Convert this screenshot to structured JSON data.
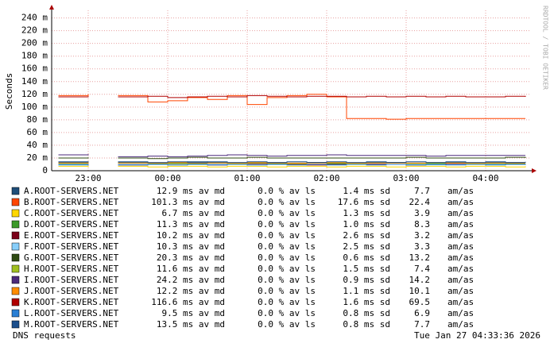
{
  "chart_data": {
    "type": "line",
    "title": "DNS requests",
    "timestamp": "Tue Jan 27 04:33:36 2026",
    "watermark": "RRDTOOL / TOBI OETIKER",
    "y_label": "Seconds",
    "ylim": [
      0,
      0.252
    ],
    "yticks": [
      0,
      {
        "value": 0.02,
        "label": "20 m"
      },
      {
        "value": 0.04,
        "label": "40 m"
      },
      {
        "value": 0.06,
        "label": "60 m"
      },
      {
        "value": 0.08,
        "label": "80 m"
      },
      {
        "value": 0.1,
        "label": "100 m"
      },
      {
        "value": 0.12,
        "label": "120 m"
      },
      {
        "value": 0.14,
        "label": "140 m"
      },
      {
        "value": 0.16,
        "label": "160 m"
      },
      {
        "value": 0.18,
        "label": "180 m"
      },
      {
        "value": 0.2,
        "label": "200 m"
      },
      {
        "value": 0.22,
        "label": "220 m"
      },
      {
        "value": 0.24,
        "label": "240 m"
      }
    ],
    "grid": true,
    "categories": [
      null,
      "23:00",
      null,
      null,
      null,
      "00:00",
      null,
      null,
      null,
      "01:00",
      null,
      null,
      null,
      "02:00",
      null,
      null,
      null,
      "03:00",
      null,
      null,
      null,
      "04:00",
      null,
      null
    ],
    "series": [
      {
        "name": "A.ROOT-SERVERS.NET",
        "color": "#1f4e79",
        "stats": [
          "12.9 ms av md",
          "0.0 % av ls",
          "1.4 ms sd",
          "7.7",
          "am/as"
        ],
        "values": [
          0.013,
          0.012,
          null,
          0.013,
          0.012,
          0.013,
          0.014,
          0.013,
          0.012,
          0.013,
          0.013,
          0.012,
          0.013,
          0.013,
          0.012,
          0.013,
          0.013,
          0.012,
          0.013,
          0.013,
          0.012,
          0.013,
          0.013,
          0.013
        ]
      },
      {
        "name": "B.ROOT-SERVERS.NET",
        "color": "#ff4500",
        "stats": [
          "101.3 ms av md",
          "0.0 % av ls",
          "17.6 ms sd",
          "22.4",
          "am/as"
        ],
        "values": [
          0.118,
          0.12,
          null,
          0.118,
          0.108,
          0.11,
          0.115,
          0.112,
          0.118,
          0.104,
          0.115,
          0.118,
          0.12,
          0.116,
          0.082,
          0.082,
          0.081,
          0.082,
          0.082,
          0.082,
          0.082,
          0.082,
          0.082,
          0.082
        ]
      },
      {
        "name": "C.ROOT-SERVERS.NET",
        "color": "#ffd700",
        "stats": [
          "6.7 ms av md",
          "0.0 % av ls",
          "1.3 ms sd",
          "3.9",
          "am/as"
        ],
        "values": [
          0.007,
          0.006,
          null,
          0.007,
          0.006,
          0.007,
          0.007,
          0.006,
          0.007,
          0.007,
          0.006,
          0.007,
          0.007,
          0.006,
          0.007,
          0.007,
          0.006,
          0.007,
          0.007,
          0.006,
          0.007,
          0.007,
          0.006,
          0.007
        ]
      },
      {
        "name": "D.ROOT-SERVERS.NET",
        "color": "#3c9a2a",
        "stats": [
          "11.3 ms av md",
          "0.0 % av ls",
          "1.0 ms sd",
          "8.3",
          "am/as"
        ],
        "values": [
          0.011,
          0.012,
          null,
          0.011,
          0.011,
          0.012,
          0.011,
          0.011,
          0.012,
          0.011,
          0.011,
          0.011,
          0.012,
          0.011,
          0.011,
          0.011,
          0.012,
          0.011,
          0.011,
          0.011,
          0.012,
          0.011,
          0.011,
          0.011
        ]
      },
      {
        "name": "E.ROOT-SERVERS.NET",
        "color": "#7a0019",
        "stats": [
          "10.2 ms av md",
          "0.0 % av ls",
          "2.6 ms sd",
          "3.2",
          "am/as"
        ],
        "values": [
          0.01,
          0.011,
          null,
          0.009,
          0.01,
          0.011,
          0.01,
          0.009,
          0.01,
          0.011,
          0.01,
          0.01,
          0.009,
          0.01,
          0.011,
          0.01,
          0.01,
          0.009,
          0.01,
          0.011,
          0.01,
          0.01,
          0.01,
          0.01
        ]
      },
      {
        "name": "F.ROOT-SERVERS.NET",
        "color": "#87cefa",
        "stats": [
          "10.3 ms av md",
          "0.0 % av ls",
          "2.5 ms sd",
          "3.3",
          "am/as"
        ],
        "values": [
          0.01,
          0.009,
          null,
          0.011,
          0.01,
          0.009,
          0.01,
          0.011,
          0.01,
          0.009,
          0.01,
          0.011,
          0.01,
          0.009,
          0.01,
          0.011,
          0.01,
          0.01,
          0.009,
          0.01,
          0.011,
          0.01,
          0.01,
          0.01
        ]
      },
      {
        "name": "G.ROOT-SERVERS.NET",
        "color": "#2e4a12",
        "stats": [
          "20.3 ms av md",
          "0.0 % av ls",
          "0.6 ms sd",
          "13.2",
          "am/as"
        ],
        "values": [
          0.02,
          0.021,
          null,
          0.02,
          0.019,
          0.02,
          0.021,
          0.02,
          0.02,
          0.021,
          0.02,
          0.02,
          0.02,
          0.02,
          0.02,
          0.02,
          0.02,
          0.021,
          0.02,
          0.02,
          0.02,
          0.02,
          0.021,
          0.02
        ]
      },
      {
        "name": "H.ROOT-SERVERS.NET",
        "color": "#a0c020",
        "stats": [
          "11.6 ms av md",
          "0.0 % av ls",
          "1.5 ms sd",
          "7.4",
          "am/as"
        ],
        "values": [
          0.012,
          0.011,
          null,
          0.012,
          0.012,
          0.011,
          0.012,
          0.012,
          0.011,
          0.012,
          0.012,
          0.011,
          0.012,
          0.012,
          0.011,
          0.012,
          0.012,
          0.011,
          0.012,
          0.012,
          0.011,
          0.012,
          0.012,
          0.012
        ]
      },
      {
        "name": "I.ROOT-SERVERS.NET",
        "color": "#4b2a7b",
        "stats": [
          "24.2 ms av md",
          "0.0 % av ls",
          "0.9 ms sd",
          "14.2",
          "am/as"
        ],
        "values": [
          0.025,
          0.026,
          null,
          0.022,
          0.023,
          0.022,
          0.023,
          0.024,
          0.025,
          0.024,
          0.023,
          0.024,
          0.024,
          0.025,
          0.024,
          0.024,
          0.024,
          0.024,
          0.023,
          0.024,
          0.024,
          0.024,
          0.024,
          0.024
        ]
      },
      {
        "name": "J.ROOT-SERVERS.NET",
        "color": "#ff8c00",
        "stats": [
          "12.2 ms av md",
          "0.0 % av ls",
          "1.1 ms sd",
          "10.1",
          "am/as"
        ],
        "values": [
          0.012,
          0.013,
          null,
          0.012,
          0.012,
          0.013,
          0.012,
          0.012,
          0.012,
          0.013,
          0.012,
          0.012,
          0.012,
          0.013,
          0.012,
          0.012,
          0.012,
          0.012,
          0.013,
          0.012,
          0.012,
          0.012,
          0.012,
          0.012
        ]
      },
      {
        "name": "K.ROOT-SERVERS.NET",
        "color": "#b00000",
        "stats": [
          "116.6 ms av md",
          "0.0 % av ls",
          "1.6 ms sd",
          "69.5",
          "am/as"
        ],
        "values": [
          0.116,
          0.117,
          null,
          0.116,
          0.117,
          0.115,
          0.116,
          0.117,
          0.116,
          0.118,
          0.117,
          0.116,
          0.117,
          0.117,
          0.116,
          0.117,
          0.116,
          0.117,
          0.116,
          0.117,
          0.116,
          0.116,
          0.117,
          0.116
        ]
      },
      {
        "name": "L.ROOT-SERVERS.NET",
        "color": "#2a7fd4",
        "stats": [
          "9.5 ms av md",
          "0.0 % av ls",
          "0.8 ms sd",
          "6.9",
          "am/as"
        ],
        "values": [
          0.009,
          0.01,
          null,
          0.009,
          0.01,
          0.009,
          0.01,
          0.009,
          0.01,
          0.009,
          0.01,
          0.009,
          0.01,
          0.009,
          0.01,
          0.009,
          0.01,
          0.009,
          0.01,
          0.009,
          0.01,
          0.009,
          0.01,
          0.009
        ]
      },
      {
        "name": "M.ROOT-SERVERS.NET",
        "color": "#1c4f8c",
        "stats": [
          "13.5 ms av md",
          "0.0 % av ls",
          "0.8 ms sd",
          "7.7",
          "am/as"
        ],
        "values": [
          0.014,
          0.013,
          null,
          0.014,
          0.013,
          0.014,
          0.013,
          0.014,
          0.013,
          0.014,
          0.013,
          0.014,
          0.013,
          0.014,
          0.013,
          0.014,
          0.013,
          0.014,
          0.013,
          0.014,
          0.013,
          0.014,
          0.013,
          0.014
        ]
      }
    ]
  }
}
